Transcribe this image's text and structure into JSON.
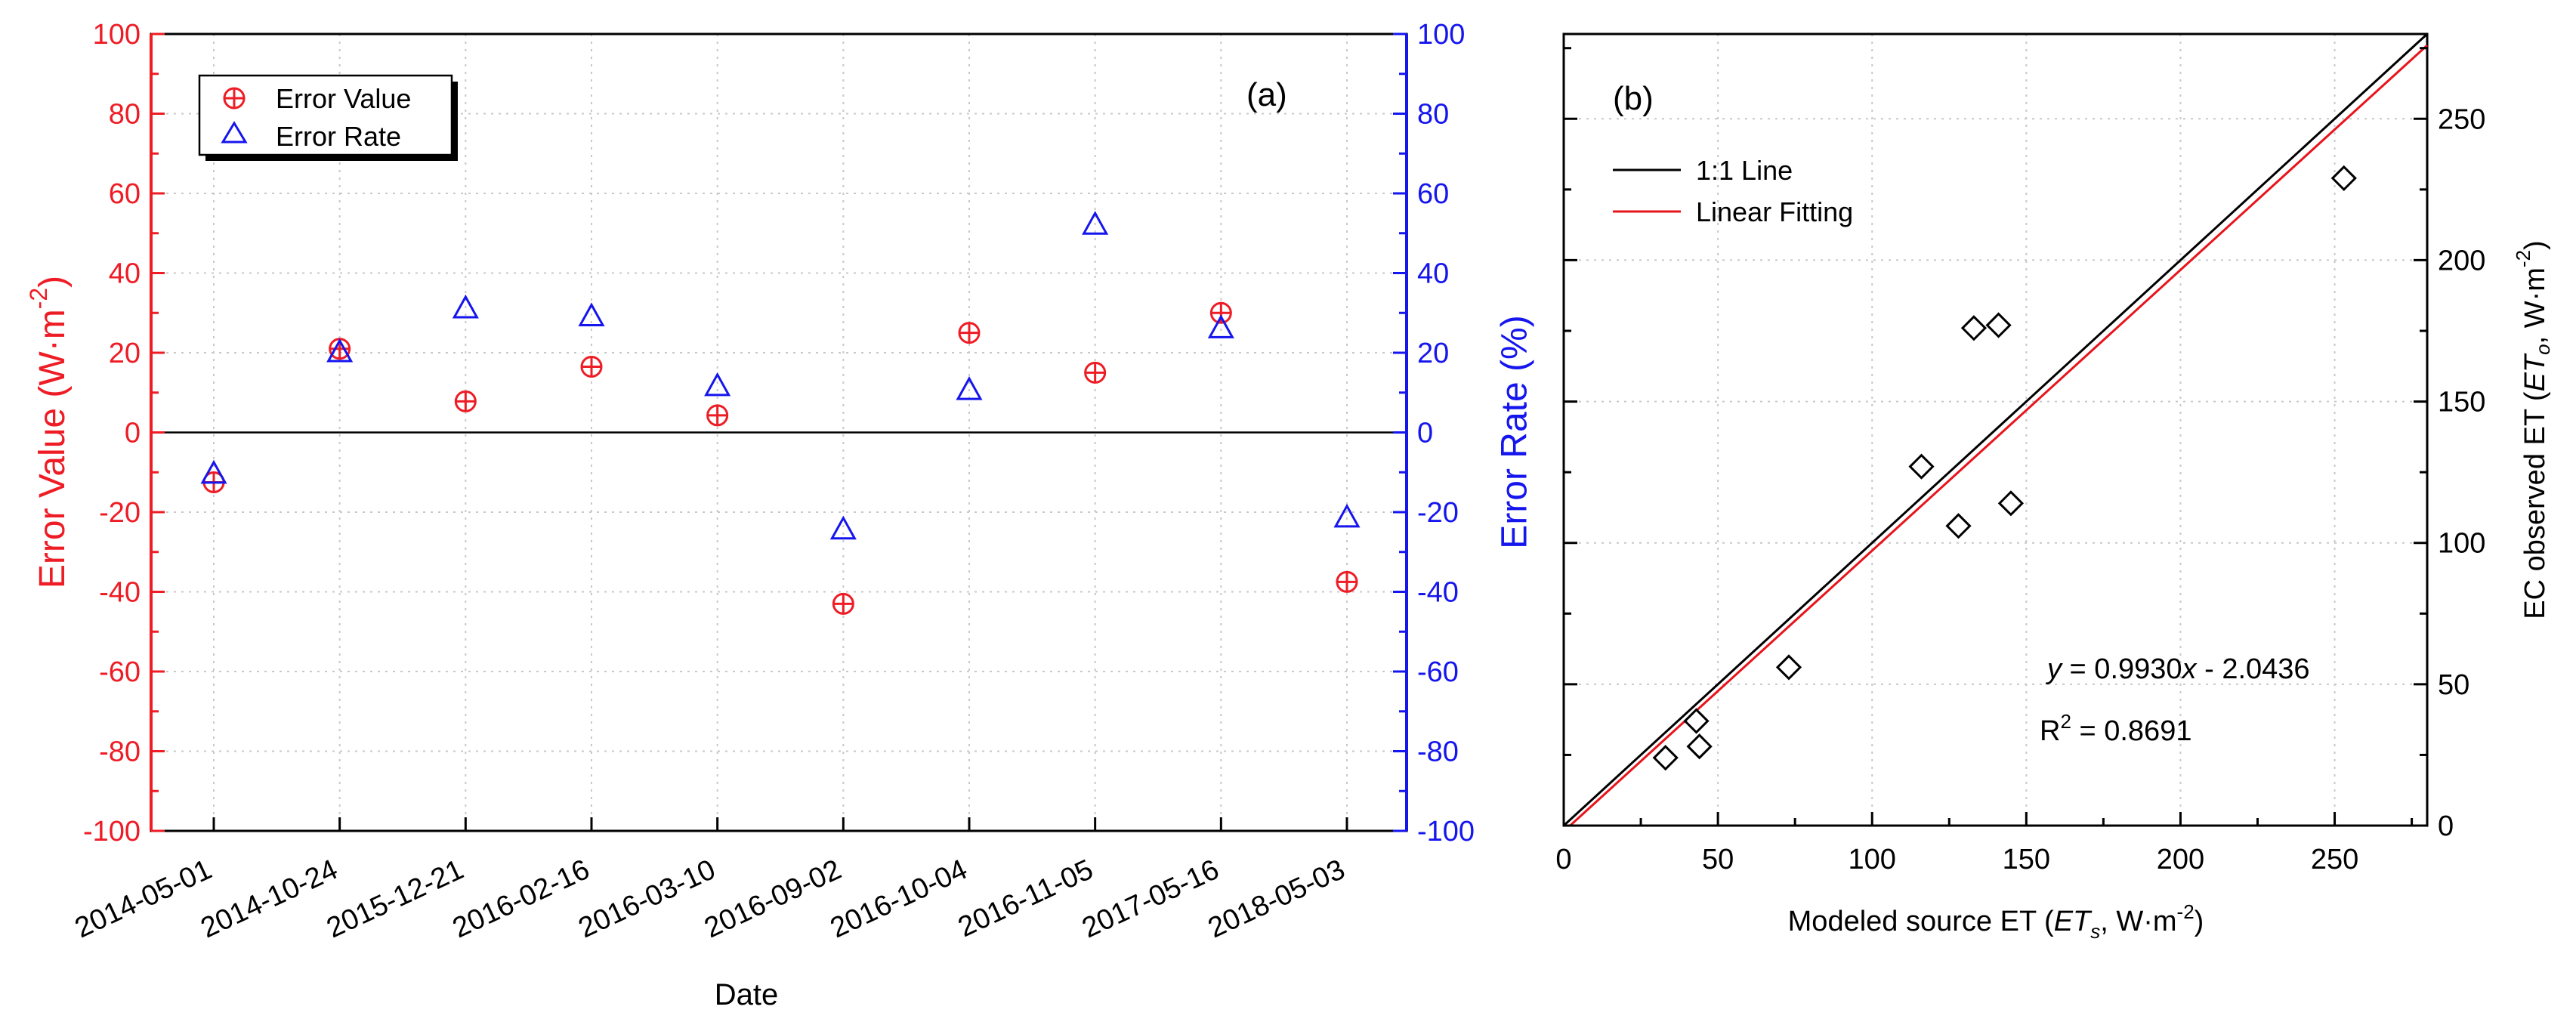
{
  "colors": {
    "red": "#ee1c25",
    "blue": "#1515ee",
    "black": "#000000",
    "fit_red": "#e8141c"
  },
  "chart_data": [
    {
      "id": "a",
      "type": "scatter",
      "panel_label": "(a)",
      "xlabel": "Date",
      "ylabel_left": "Error Value (W·m⁻²)",
      "ylabel_left_main": "Error Value (W·m",
      "ylabel_left_sup": "-2",
      "ylabel_left_close": ")",
      "ylabel_right": "Error Rate (%)",
      "categories": [
        "2014-05-01",
        "2014-10-24",
        "2015-12-21",
        "2016-02-16",
        "2016-03-10",
        "2016-09-02",
        "2016-10-04",
        "2016-11-05",
        "2017-05-16",
        "2018-05-03"
      ],
      "ylim_left": [
        -100,
        100
      ],
      "ylim_right": [
        -100,
        100
      ],
      "yticks_left": [
        -100,
        -80,
        -60,
        -40,
        -20,
        0,
        20,
        40,
        60,
        80,
        100
      ],
      "yticks_right": [
        -100,
        -80,
        -60,
        -40,
        -20,
        0,
        20,
        40,
        60,
        80,
        100
      ],
      "series": [
        {
          "name": "Error Value",
          "axis": "left",
          "marker": "circle-plus",
          "color": "#ee1c25",
          "values": [
            -12.5,
            21.0,
            7.8,
            16.5,
            4.3,
            -43.0,
            25.0,
            15.0,
            30.0,
            -37.5
          ]
        },
        {
          "name": "Error Rate",
          "axis": "right",
          "marker": "triangle",
          "color": "#1515ee",
          "values": [
            -10.5,
            20.0,
            31.0,
            29.0,
            11.5,
            -24.5,
            10.5,
            52.0,
            26.0,
            -21.5
          ]
        }
      ],
      "zero_line": 0,
      "legend": [
        "Error Value",
        "Error Rate"
      ]
    },
    {
      "id": "b",
      "type": "scatter",
      "panel_label": "(b)",
      "xlabel": "Modeled source ET (ETs, W·m⁻²)",
      "xlabel_pre": "Modeled source ET (",
      "xlabel_it": "ET",
      "xlabel_sub": "s",
      "xlabel_post": ", W·m",
      "xlabel_sup": "-2",
      "xlabel_close": ")",
      "ylabel": "EC observed ET (ETo, W·m⁻²)",
      "ylabel_pre": "EC observed ET (",
      "ylabel_it": "ET",
      "ylabel_sub": "o",
      "ylabel_post": ", W·m",
      "ylabel_sup": "-2",
      "ylabel_close": ")",
      "xlim": [
        0,
        280
      ],
      "ylim": [
        0,
        280
      ],
      "xticks": [
        0,
        50,
        100,
        150,
        200,
        250
      ],
      "yticks": [
        0,
        50,
        100,
        150,
        200,
        250
      ],
      "points": [
        {
          "x": 33,
          "y": 24
        },
        {
          "x": 43,
          "y": 37
        },
        {
          "x": 44,
          "y": 28
        },
        {
          "x": 73,
          "y": 56
        },
        {
          "x": 116,
          "y": 127
        },
        {
          "x": 128,
          "y": 106
        },
        {
          "x": 133,
          "y": 176
        },
        {
          "x": 141,
          "y": 177
        },
        {
          "x": 145,
          "y": 114
        },
        {
          "x": 253,
          "y": 229
        }
      ],
      "lines": [
        {
          "name": "1:1 Line",
          "slope": 1.0,
          "intercept": 0.0,
          "color": "#000000"
        },
        {
          "name": "Linear Fitting",
          "slope": 0.993,
          "intercept": -2.0436,
          "color": "#e8141c"
        }
      ],
      "equation_y": "y",
      "equation_rest_1": " = 0.9930",
      "equation_x": "x",
      "equation_rest_2": " - 2.0436",
      "r2_label": "R",
      "r2_sup": "2",
      "r2_value": " = 0.8691",
      "legend": [
        "1:1 Line",
        "Linear Fitting"
      ]
    }
  ]
}
